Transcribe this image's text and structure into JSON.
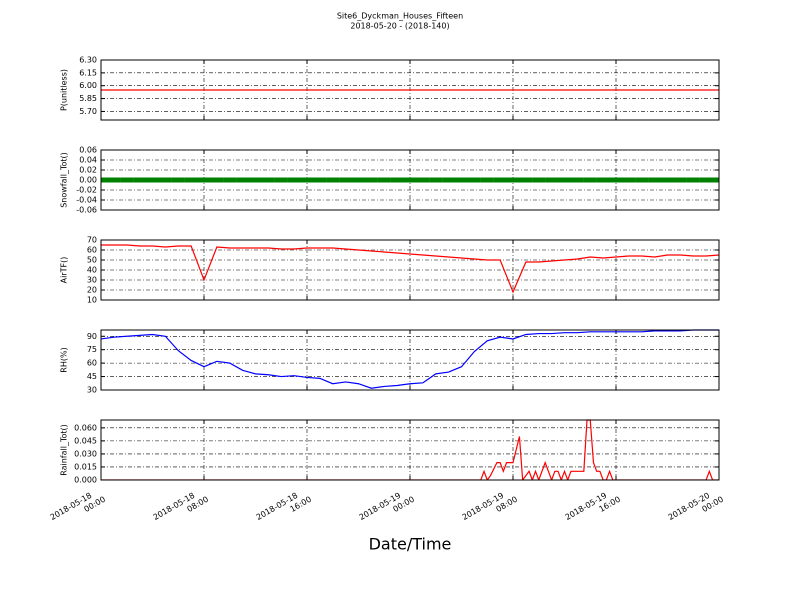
{
  "title": "Site6_Dyckman_Houses_Fifteen",
  "subtitle": "2018-05-20 - (2018-140)",
  "xlabel": "Date/Time",
  "chart_data": [
    {
      "type": "line",
      "ylabel": "P(unitless)",
      "color": "#ff0000",
      "grid": true,
      "xlim": [
        "2018-05-18 00:00",
        "2018-05-20 00:00"
      ],
      "xticks": [
        "2018-05-18 00:00",
        "2018-05-18 08:00",
        "2018-05-18 16:00",
        "2018-05-19 00:00",
        "2018-05-19 08:00",
        "2018-05-19 16:00",
        "2018-05-20 00:00"
      ],
      "ylim": [
        5.6,
        6.3
      ],
      "yticks": [
        {
          "value": 5.7,
          "label": "5.70"
        },
        {
          "value": 5.85,
          "label": "5.85"
        },
        {
          "value": 6.0,
          "label": "6.00"
        },
        {
          "value": 6.15,
          "label": "6.15"
        },
        {
          "value": 6.3,
          "label": "6.30"
        }
      ],
      "x": [
        "2018-05-18 00:00",
        "2018-05-18 01:00",
        "2018-05-18 02:00",
        "2018-05-18 03:00",
        "2018-05-18 04:00",
        "2018-05-18 05:00",
        "2018-05-18 06:00",
        "2018-05-18 07:00",
        "2018-05-18 08:00",
        "2018-05-18 09:00",
        "2018-05-18 10:00",
        "2018-05-18 11:00",
        "2018-05-18 12:00",
        "2018-05-18 13:00",
        "2018-05-18 14:00",
        "2018-05-18 15:00",
        "2018-05-18 16:00",
        "2018-05-18 17:00",
        "2018-05-18 18:00",
        "2018-05-18 19:00",
        "2018-05-18 20:00",
        "2018-05-18 21:00",
        "2018-05-18 22:00",
        "2018-05-18 23:00",
        "2018-05-19 00:00",
        "2018-05-19 01:00",
        "2018-05-19 02:00",
        "2018-05-19 03:00",
        "2018-05-19 04:00",
        "2018-05-19 05:00",
        "2018-05-19 06:00",
        "2018-05-19 07:00",
        "2018-05-19 08:00",
        "2018-05-19 09:00",
        "2018-05-19 10:00",
        "2018-05-19 11:00",
        "2018-05-19 12:00",
        "2018-05-19 13:00",
        "2018-05-19 14:00",
        "2018-05-19 15:00",
        "2018-05-19 16:00",
        "2018-05-19 17:00",
        "2018-05-19 18:00",
        "2018-05-19 19:00",
        "2018-05-19 20:00",
        "2018-05-19 21:00",
        "2018-05-19 22:00",
        "2018-05-19 23:00",
        "2018-05-20 00:00"
      ],
      "values": [
        5.95,
        5.95,
        5.95,
        5.95,
        5.95,
        5.95,
        5.95,
        5.95,
        5.95,
        5.95,
        5.95,
        5.95,
        5.95,
        5.95,
        5.95,
        5.95,
        5.95,
        5.95,
        5.95,
        5.95,
        5.95,
        5.95,
        5.95,
        5.95,
        5.95,
        5.95,
        5.95,
        5.95,
        5.95,
        5.95,
        5.95,
        5.95,
        5.95,
        5.95,
        5.95,
        5.95,
        5.95,
        5.95,
        5.95,
        5.95,
        5.95,
        5.95,
        5.95,
        5.95,
        5.95,
        5.95,
        5.95,
        5.95,
        5.95
      ]
    },
    {
      "type": "scatter",
      "ylabel": "Snowfall_Tot()",
      "color": "#008000",
      "grid": true,
      "xlim": [
        "2018-05-18 00:00",
        "2018-05-20 00:00"
      ],
      "xticks": [
        "2018-05-18 00:00",
        "2018-05-18 08:00",
        "2018-05-18 16:00",
        "2018-05-19 00:00",
        "2018-05-19 08:00",
        "2018-05-19 16:00",
        "2018-05-20 00:00"
      ],
      "ylim": [
        -0.06,
        0.06
      ],
      "yticks": [
        -0.06,
        -0.04,
        -0.02,
        {
          "value": 0,
          "label": "0.00"
        },
        0.02,
        0.04,
        0.06
      ],
      "x": [
        "2018-05-18 00:00",
        "2018-05-18 01:00",
        "2018-05-18 02:00",
        "2018-05-18 03:00",
        "2018-05-18 04:00",
        "2018-05-18 05:00",
        "2018-05-18 06:00",
        "2018-05-18 07:00",
        "2018-05-18 08:00",
        "2018-05-18 09:00",
        "2018-05-18 10:00",
        "2018-05-18 11:00",
        "2018-05-18 12:00",
        "2018-05-18 13:00",
        "2018-05-18 14:00",
        "2018-05-18 15:00",
        "2018-05-18 16:00",
        "2018-05-18 17:00",
        "2018-05-18 18:00",
        "2018-05-18 19:00",
        "2018-05-18 20:00",
        "2018-05-18 21:00",
        "2018-05-18 22:00",
        "2018-05-18 23:00",
        "2018-05-19 00:00",
        "2018-05-19 01:00",
        "2018-05-19 02:00",
        "2018-05-19 03:00",
        "2018-05-19 04:00",
        "2018-05-19 05:00",
        "2018-05-19 06:00",
        "2018-05-19 07:00",
        "2018-05-19 08:00",
        "2018-05-19 09:00",
        "2018-05-19 10:00",
        "2018-05-19 11:00",
        "2018-05-19 12:00",
        "2018-05-19 13:00",
        "2018-05-19 14:00",
        "2018-05-19 15:00",
        "2018-05-19 16:00",
        "2018-05-19 17:00",
        "2018-05-19 18:00",
        "2018-05-19 19:00",
        "2018-05-19 20:00",
        "2018-05-19 21:00",
        "2018-05-19 22:00",
        "2018-05-19 23:00",
        "2018-05-20 00:00"
      ],
      "values": [
        0,
        0,
        0,
        0,
        0,
        0,
        0,
        0,
        0,
        0,
        0,
        0,
        0,
        0,
        0,
        0,
        0,
        0,
        0,
        0,
        0,
        0,
        0,
        0,
        0,
        0,
        0,
        0,
        0,
        0,
        0,
        0,
        0,
        0,
        0,
        0,
        0,
        0,
        0,
        0,
        0,
        0,
        0,
        0,
        0,
        0,
        0,
        0,
        0
      ]
    },
    {
      "type": "line",
      "ylabel": "AirTF()",
      "color": "#ff0000",
      "grid": true,
      "xlim": [
        "2018-05-18 00:00",
        "2018-05-20 00:00"
      ],
      "xticks": [
        "2018-05-18 00:00",
        "2018-05-18 08:00",
        "2018-05-18 16:00",
        "2018-05-19 00:00",
        "2018-05-19 08:00",
        "2018-05-19 16:00",
        "2018-05-20 00:00"
      ],
      "ylim": [
        10,
        70
      ],
      "yticks": [
        10,
        20,
        30,
        40,
        50,
        60,
        70
      ],
      "x": [
        "2018-05-18 00:00",
        "2018-05-18 01:00",
        "2018-05-18 02:00",
        "2018-05-18 03:00",
        "2018-05-18 04:00",
        "2018-05-18 05:00",
        "2018-05-18 06:00",
        "2018-05-18 07:00",
        "2018-05-18 08:00",
        "2018-05-18 09:00",
        "2018-05-18 10:00",
        "2018-05-18 11:00",
        "2018-05-18 12:00",
        "2018-05-18 13:00",
        "2018-05-18 14:00",
        "2018-05-18 15:00",
        "2018-05-18 16:00",
        "2018-05-18 17:00",
        "2018-05-18 18:00",
        "2018-05-18 19:00",
        "2018-05-18 20:00",
        "2018-05-18 21:00",
        "2018-05-18 22:00",
        "2018-05-18 23:00",
        "2018-05-19 00:00",
        "2018-05-19 01:00",
        "2018-05-19 02:00",
        "2018-05-19 03:00",
        "2018-05-19 04:00",
        "2018-05-19 05:00",
        "2018-05-19 06:00",
        "2018-05-19 07:00",
        "2018-05-19 08:00",
        "2018-05-19 09:00",
        "2018-05-19 10:00",
        "2018-05-19 11:00",
        "2018-05-19 12:00",
        "2018-05-19 13:00",
        "2018-05-19 14:00",
        "2018-05-19 15:00",
        "2018-05-19 16:00",
        "2018-05-19 17:00",
        "2018-05-19 18:00",
        "2018-05-19 19:00",
        "2018-05-19 20:00",
        "2018-05-19 21:00",
        "2018-05-19 22:00",
        "2018-05-19 23:00",
        "2018-05-20 00:00"
      ],
      "values": [
        65,
        65,
        65,
        64,
        64,
        63,
        64,
        64,
        30,
        63,
        62,
        62,
        62,
        62,
        61,
        61,
        62,
        62,
        62,
        61,
        60,
        59,
        58,
        57,
        56,
        55,
        54,
        53,
        52,
        51,
        50,
        50,
        18,
        48,
        48,
        49,
        50,
        51,
        53,
        52,
        53,
        54,
        54,
        53,
        55,
        55,
        54,
        54,
        55
      ]
    },
    {
      "type": "line",
      "ylabel": "RH(%)",
      "color": "#0000ff",
      "grid": true,
      "xlim": [
        "2018-05-18 00:00",
        "2018-05-20 00:00"
      ],
      "xticks": [
        "2018-05-18 00:00",
        "2018-05-18 08:00",
        "2018-05-18 16:00",
        "2018-05-19 00:00",
        "2018-05-19 08:00",
        "2018-05-19 16:00",
        "2018-05-20 00:00"
      ],
      "ylim": [
        30,
        97
      ],
      "yticks": [
        30,
        45,
        60,
        75,
        90
      ],
      "x": [
        "2018-05-18 00:00",
        "2018-05-18 01:00",
        "2018-05-18 02:00",
        "2018-05-18 03:00",
        "2018-05-18 04:00",
        "2018-05-18 05:00",
        "2018-05-18 06:00",
        "2018-05-18 07:00",
        "2018-05-18 08:00",
        "2018-05-18 09:00",
        "2018-05-18 10:00",
        "2018-05-18 11:00",
        "2018-05-18 12:00",
        "2018-05-18 13:00",
        "2018-05-18 14:00",
        "2018-05-18 15:00",
        "2018-05-18 16:00",
        "2018-05-18 17:00",
        "2018-05-18 18:00",
        "2018-05-18 19:00",
        "2018-05-18 20:00",
        "2018-05-18 21:00",
        "2018-05-18 22:00",
        "2018-05-18 23:00",
        "2018-05-19 00:00",
        "2018-05-19 01:00",
        "2018-05-19 02:00",
        "2018-05-19 03:00",
        "2018-05-19 04:00",
        "2018-05-19 05:00",
        "2018-05-19 06:00",
        "2018-05-19 07:00",
        "2018-05-19 08:00",
        "2018-05-19 09:00",
        "2018-05-19 10:00",
        "2018-05-19 11:00",
        "2018-05-19 12:00",
        "2018-05-19 13:00",
        "2018-05-19 14:00",
        "2018-05-19 15:00",
        "2018-05-19 16:00",
        "2018-05-19 17:00",
        "2018-05-19 18:00",
        "2018-05-19 19:00",
        "2018-05-19 20:00",
        "2018-05-19 21:00",
        "2018-05-19 22:00",
        "2018-05-19 23:00",
        "2018-05-20 00:00"
      ],
      "values": [
        87,
        89,
        90,
        91,
        92,
        90,
        74,
        63,
        56,
        62,
        60,
        52,
        48,
        47,
        45,
        46,
        44,
        43,
        37,
        39,
        37,
        32,
        34,
        35,
        37,
        38,
        48,
        50,
        56,
        73,
        85,
        89,
        87,
        92,
        93,
        93,
        94,
        94,
        95,
        95,
        95,
        95,
        95,
        96,
        96,
        96,
        97,
        97,
        97
      ]
    },
    {
      "type": "line",
      "ylabel": "Rainfall_Tot()",
      "color": "#ff0000",
      "grid": true,
      "xlim": [
        "2018-05-18 00:00",
        "2018-05-20 00:00"
      ],
      "xticks": [
        {
          "value": "2018-05-18 00:00",
          "label": "2018-05-18 00:00"
        },
        {
          "value": "2018-05-18 08:00",
          "label": "2018-05-18 08:00"
        },
        {
          "value": "2018-05-18 16:00",
          "label": "2018-05-18 16:00"
        },
        {
          "value": "2018-05-19 00:00",
          "label": "2018-05-19 00:00"
        },
        {
          "value": "2018-05-19 08:00",
          "label": "2018-05-19 08:00"
        },
        {
          "value": "2018-05-19 16:00",
          "label": "2018-05-19 16:00"
        },
        {
          "value": "2018-05-20 00:00",
          "label": "2018-05-20 00:00"
        }
      ],
      "ylim": [
        0,
        0.069
      ],
      "yticks": [
        {
          "value": 0,
          "label": "0.000"
        },
        {
          "value": 0.015,
          "label": "0.015"
        },
        {
          "value": 0.03,
          "label": "0.030"
        },
        {
          "value": 0.045,
          "label": "0.045"
        },
        {
          "value": 0.06,
          "label": "0.060"
        }
      ],
      "x": [
        "2018-05-18 00:00",
        "2018-05-19 05:30",
        "2018-05-19 05:45",
        "2018-05-19 06:00",
        "2018-05-19 06:15",
        "2018-05-19 06:45",
        "2018-05-19 07:00",
        "2018-05-19 07:15",
        "2018-05-19 07:30",
        "2018-05-19 08:00",
        "2018-05-19 08:30",
        "2018-05-19 08:45",
        "2018-05-19 09:15",
        "2018-05-19 09:30",
        "2018-05-19 09:45",
        "2018-05-19 10:00",
        "2018-05-19 10:30",
        "2018-05-19 10:45",
        "2018-05-19 11:00",
        "2018-05-19 11:15",
        "2018-05-19 11:30",
        "2018-05-19 11:45",
        "2018-05-19 12:00",
        "2018-05-19 12:15",
        "2018-05-19 12:30",
        "2018-05-19 13:00",
        "2018-05-19 13:30",
        "2018-05-19 13:45",
        "2018-05-19 14:00",
        "2018-05-19 14:15",
        "2018-05-19 14:30",
        "2018-05-19 14:45",
        "2018-05-19 15:00",
        "2018-05-19 15:15",
        "2018-05-19 15:30",
        "2018-05-19 15:45",
        "2018-05-19 23:00",
        "2018-05-19 23:15",
        "2018-05-19 23:30",
        "2018-05-20 00:00"
      ],
      "values": [
        0,
        0,
        0.01,
        0,
        0.005,
        0.02,
        0.02,
        0.01,
        0.02,
        0.02,
        0.05,
        0,
        0.01,
        0,
        0.01,
        0,
        0.02,
        0.01,
        0,
        0.01,
        0.01,
        0,
        0.01,
        0,
        0.01,
        0.01,
        0.01,
        0.069,
        0.069,
        0.02,
        0.01,
        0.01,
        0,
        0,
        0.01,
        0,
        0,
        0.01,
        0,
        0
      ]
    }
  ]
}
